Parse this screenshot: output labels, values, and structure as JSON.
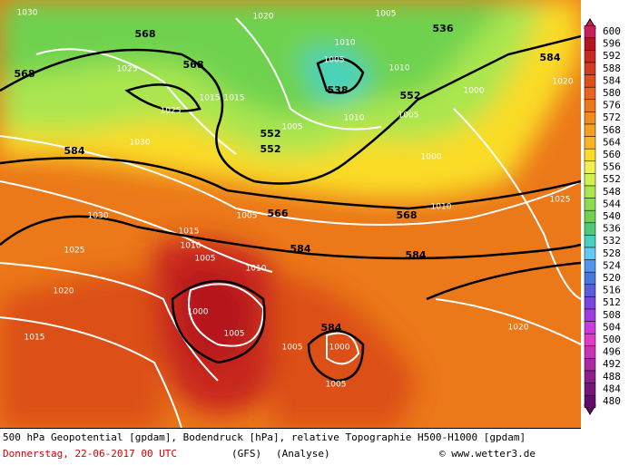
{
  "colorbar": {
    "labels": [
      600,
      596,
      592,
      588,
      584,
      580,
      576,
      572,
      568,
      564,
      560,
      556,
      552,
      548,
      544,
      540,
      536,
      532,
      528,
      524,
      520,
      516,
      512,
      508,
      504,
      500,
      496,
      492,
      488,
      484,
      480
    ],
    "colors": [
      "#c81e5a",
      "#b4141e",
      "#c8281e",
      "#d23c1e",
      "#dc5019",
      "#e6641e",
      "#eb7819",
      "#f08c1e",
      "#f5a01e",
      "#fab428",
      "#fadc28",
      "#f0f050",
      "#d2f050",
      "#aae650",
      "#8cdc50",
      "#6ed250",
      "#50c878",
      "#46d2be",
      "#64c8f0",
      "#5096f0",
      "#4678dc",
      "#5a5adc",
      "#7846dc",
      "#a03cdc",
      "#c83cdc",
      "#dc3cc8",
      "#c832b4",
      "#aa28a0",
      "#8c1e8c",
      "#781478",
      "#640a6e"
    ]
  },
  "map": {
    "height_labels": [
      568,
      568,
      568,
      538,
      552,
      552,
      552,
      584,
      584,
      566,
      568,
      584,
      584,
      584,
      536
    ],
    "pressure_labels": [
      1030,
      1025,
      1015,
      1025,
      1030,
      1030,
      1025,
      1020,
      1015,
      1015,
      1010,
      1005,
      1010,
      1000,
      1005,
      1005,
      1000,
      1005,
      1020,
      1025,
      1020,
      1000,
      1005,
      1010,
      1005,
      1000,
      1005,
      1010,
      1020,
      1010,
      1005,
      1010,
      1015,
      1005
    ]
  },
  "footer": {
    "line1": "500 hPa Geopotential [gpdam], Bodendruck [hPa], relative Topographie H500-H1000 [gpdam]",
    "date": "Donnerstag, 22-06-2017  00 UTC",
    "model": "(GFS)",
    "analysis": "(Analyse)",
    "credit": "© www.wetter3.de"
  }
}
